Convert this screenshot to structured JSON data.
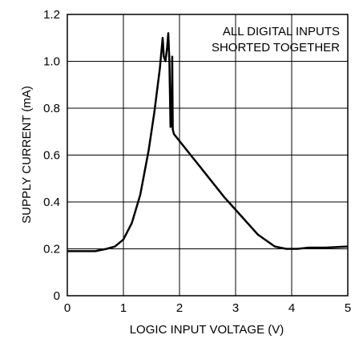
{
  "chart_data": {
    "type": "line",
    "title": "",
    "xlabel": "LOGIC INPUT VOLTAGE (V)",
    "ylabel": "SUPPLY CURRENT  (mA)",
    "xlim": [
      0,
      5
    ],
    "ylim": [
      0,
      1.2
    ],
    "x_ticks": [
      "0",
      "1",
      "2",
      "3",
      "4",
      "5"
    ],
    "y_ticks": [
      "0",
      "0.2",
      "0.4",
      "0.6",
      "0.8",
      "1.0",
      "1.2"
    ],
    "grid": true,
    "legend": "none",
    "annotation_lines": [
      "ALL DIGITAL INPUTS",
      "SHORTED TOGETHER"
    ],
    "series": [
      {
        "color": "#000000",
        "x": [
          0,
          0.5,
          0.7,
          0.85,
          1.0,
          1.15,
          1.3,
          1.45,
          1.55,
          1.65,
          1.7,
          1.72,
          1.75,
          1.78,
          1.8,
          1.82,
          1.84,
          1.86,
          1.87,
          1.88,
          1.9,
          2.2,
          2.5,
          2.8,
          3.1,
          3.4,
          3.7,
          3.9,
          4.1,
          4.3,
          4.6,
          5.0
        ],
        "y": [
          0.19,
          0.19,
          0.2,
          0.21,
          0.24,
          0.31,
          0.43,
          0.62,
          0.78,
          0.97,
          1.1,
          1.02,
          1.0,
          1.06,
          1.12,
          1.0,
          0.72,
          0.73,
          1.02,
          0.71,
          0.69,
          0.6,
          0.51,
          0.42,
          0.34,
          0.26,
          0.21,
          0.2,
          0.2,
          0.205,
          0.205,
          0.21
        ]
      }
    ]
  }
}
